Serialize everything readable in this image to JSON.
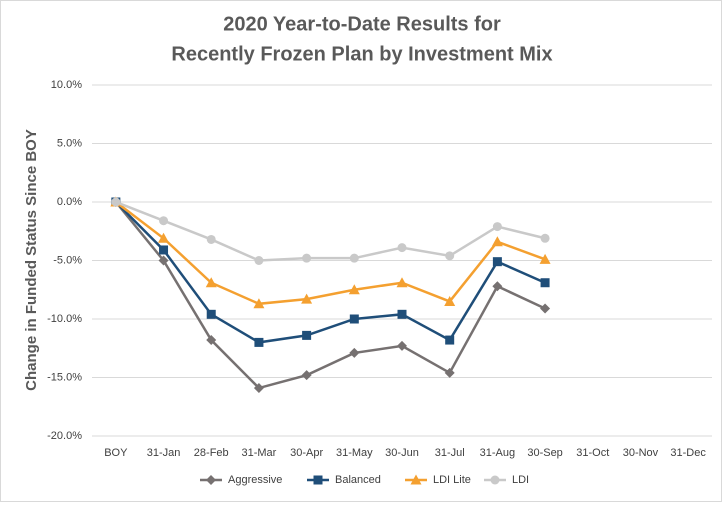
{
  "chart_data": {
    "type": "line",
    "title": [
      "2020 Year-to-Date Results for",
      "Recently Frozen Plan by Investment Mix"
    ],
    "y_label": "Change in Funded Status Since BOY",
    "categories": [
      "BOY",
      "31-Jan",
      "28-Feb",
      "31-Mar",
      "30-Apr",
      "31-May",
      "30-Jun",
      "31-Jul",
      "31-Aug",
      "30-Sep",
      "31-Oct",
      "30-Nov",
      "31-Dec"
    ],
    "series": [
      {
        "name": "Aggressive",
        "color": "#767171",
        "marker": "diamond",
        "values": [
          0,
          -5.0,
          -11.8,
          -15.9,
          -14.8,
          -12.9,
          -12.3,
          -14.6,
          -7.2,
          -9.1,
          null,
          null,
          null
        ]
      },
      {
        "name": "Balanced",
        "color": "#1f4e79",
        "marker": "square",
        "values": [
          0,
          -4.1,
          -9.6,
          -12.0,
          -11.4,
          -10.0,
          -9.6,
          -11.8,
          -5.1,
          -6.9,
          null,
          null,
          null
        ]
      },
      {
        "name": "LDI Lite",
        "color": "#f4a030",
        "marker": "triangle",
        "values": [
          0,
          -3.1,
          -6.9,
          -8.7,
          -8.3,
          -7.5,
          -6.9,
          -8.5,
          -3.4,
          -4.9,
          null,
          null,
          null
        ]
      },
      {
        "name": "LDI",
        "color": "#c9c9c9",
        "marker": "circle",
        "values": [
          0,
          -1.6,
          -3.2,
          -5.0,
          -4.8,
          -4.8,
          -3.9,
          -4.6,
          -2.1,
          -3.1,
          null,
          null,
          null
        ]
      }
    ],
    "ylim": [
      -20,
      10
    ],
    "yticks": [
      {
        "value": -20,
        "label": "-20.0%"
      },
      {
        "value": -15,
        "label": "-15.0%"
      },
      {
        "value": -10,
        "label": "-10.0%"
      },
      {
        "value": -5,
        "label": "-5.0%"
      },
      {
        "value": 0,
        "label": "0.0%"
      },
      {
        "value": 5,
        "label": "5.0%"
      },
      {
        "value": 10,
        "label": "10.0%"
      }
    ],
    "grid": true,
    "legend": "bottom"
  }
}
